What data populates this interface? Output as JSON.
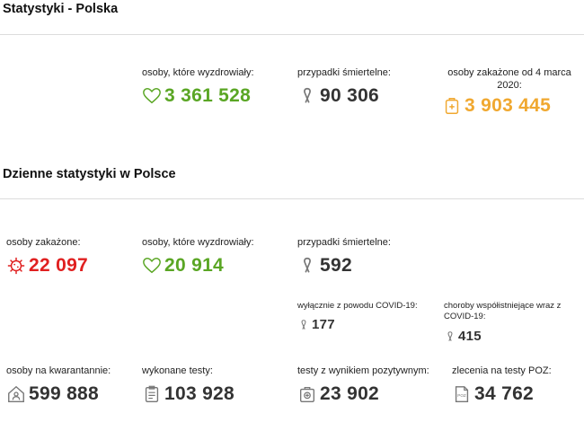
{
  "colors": {
    "green": "#5aa624",
    "dark": "#333333",
    "orange": "#f0a830",
    "red": "#e02020",
    "gray": "#777777"
  },
  "summary": {
    "title": "Statystyki - Polska",
    "recovered": {
      "label": "osoby, które wyzdrowiały:",
      "value": "3 361 528",
      "icon": "heart-icon"
    },
    "deaths": {
      "label": "przypadki śmiertelne:",
      "value": "90 306",
      "icon": "ribbon-icon"
    },
    "infected": {
      "label": "osoby zakażone od 4 marca 2020:",
      "value": "3 903 445",
      "icon": "medical-bag-icon"
    }
  },
  "daily": {
    "title": "Dzienne statystyki w Polsce",
    "infected": {
      "label": "osoby zakażone:",
      "value": "22 097",
      "icon": "virus-icon"
    },
    "recovered": {
      "label": "osoby, które wyzdrowiały:",
      "value": "20 914",
      "icon": "heart-icon"
    },
    "deaths": {
      "label": "przypadki śmiertelne:",
      "value": "592",
      "icon": "ribbon-icon"
    },
    "deaths_covid_only": {
      "label": "wyłącznie z powodu COVID-19:",
      "value": "177",
      "icon": "ribbon-icon"
    },
    "deaths_comorbid": {
      "label": "choroby współistniejące wraz z COVID-19:",
      "value": "415",
      "icon": "ribbon-icon"
    },
    "quarantine": {
      "label": "osoby na kwarantannie:",
      "value": "599 888",
      "icon": "house-person-icon"
    },
    "tests": {
      "label": "wykonane testy:",
      "value": "103 928",
      "icon": "clipboard-icon"
    },
    "positive_tests": {
      "label": "testy z wynikiem pozytywnym:",
      "value": "23 902",
      "icon": "test-kit-icon"
    },
    "poz_orders": {
      "label": "zlecenia na testy POZ:",
      "value": "34 762",
      "icon": "poz-form-icon"
    }
  }
}
